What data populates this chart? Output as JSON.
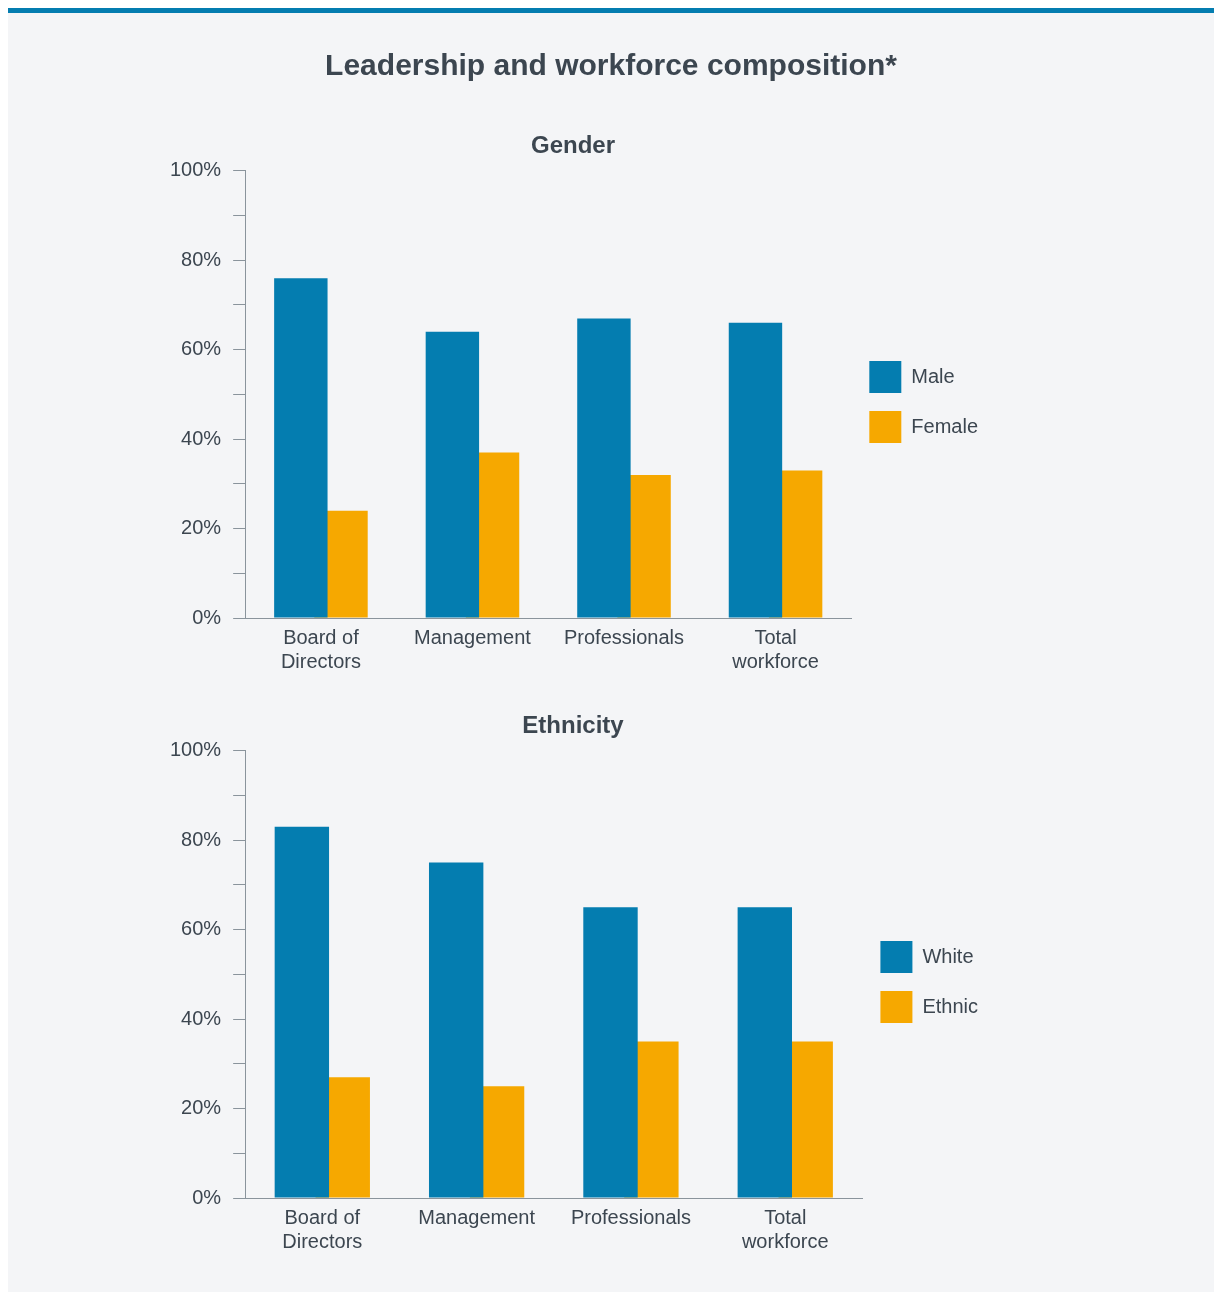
{
  "chart_data": [
    {
      "type": "bar",
      "title": "Leadership and workforce composition*",
      "subtitle": "Gender",
      "categories": [
        "Board of Directors",
        "Management",
        "Professionals",
        "Total workforce"
      ],
      "series": [
        {
          "name": "Male",
          "color": "#047db0",
          "values": [
            76,
            64,
            67,
            66
          ]
        },
        {
          "name": "Female",
          "color": "#f6a800",
          "values": [
            24,
            37,
            32,
            33
          ]
        }
      ],
      "ylim": [
        0,
        100
      ],
      "yticks": [
        {
          "value": 0,
          "label": "0%"
        },
        {
          "value": 10,
          "label": null
        },
        {
          "value": 20,
          "label": "20%"
        },
        {
          "value": 30,
          "label": null
        },
        {
          "value": 40,
          "label": "40%"
        },
        {
          "value": 50,
          "label": null
        },
        {
          "value": 60,
          "label": "60%"
        },
        {
          "value": 70,
          "label": null
        },
        {
          "value": 80,
          "label": "80%"
        },
        {
          "value": 90,
          "label": null
        },
        {
          "value": 100,
          "label": "100%"
        }
      ],
      "grid": false,
      "legend": "right"
    },
    {
      "type": "bar",
      "title": "Ethnicity",
      "categories": [
        "Board of Directors",
        "Management",
        "Professionals",
        "Total workforce"
      ],
      "series": [
        {
          "name": "White",
          "color": "#047db0",
          "values": [
            83,
            75,
            65,
            65
          ]
        },
        {
          "name": "Ethnic",
          "color": "#f6a800",
          "values": [
            27,
            25,
            35,
            35
          ]
        }
      ],
      "ylim": [
        0,
        100
      ],
      "yticks": [
        {
          "value": 0,
          "label": "0%"
        },
        {
          "value": 10,
          "label": null
        },
        {
          "value": 20,
          "label": "20%"
        },
        {
          "value": 30,
          "label": null
        },
        {
          "value": 40,
          "label": "40%"
        },
        {
          "value": 50,
          "label": null
        },
        {
          "value": 60,
          "label": "60%"
        },
        {
          "value": 70,
          "label": null
        },
        {
          "value": 80,
          "label": "80%"
        },
        {
          "value": 90,
          "label": null
        },
        {
          "value": 100,
          "label": "100%"
        }
      ],
      "grid": false,
      "legend": "right"
    }
  ]
}
